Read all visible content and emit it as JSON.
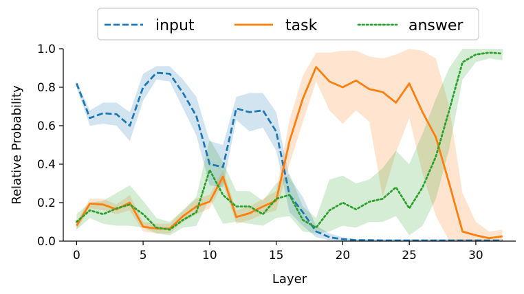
{
  "chart_data": {
    "type": "line",
    "xlabel": "Layer",
    "ylabel": "Relative Probability",
    "xlim": [
      -1,
      33
    ],
    "ylim": [
      0,
      1
    ],
    "xticks": [
      0,
      5,
      10,
      15,
      20,
      25,
      30
    ],
    "yticks": [
      0.0,
      0.2,
      0.4,
      0.6,
      0.8,
      1.0
    ],
    "ytick_labels": [
      "0.0",
      "0.2",
      "0.4",
      "0.6",
      "0.8",
      "1.0"
    ],
    "legend_position": "top-center",
    "x": [
      0,
      1,
      2,
      3,
      4,
      5,
      6,
      7,
      8,
      9,
      10,
      11,
      12,
      13,
      14,
      15,
      16,
      17,
      18,
      19,
      20,
      21,
      22,
      23,
      24,
      25,
      26,
      27,
      28,
      29,
      30,
      31,
      32
    ],
    "series": [
      {
        "name": "input",
        "color": "#1f77b4",
        "style": "dashed",
        "values": [
          0.82,
          0.64,
          0.665,
          0.66,
          0.6,
          0.8,
          0.875,
          0.87,
          0.77,
          0.65,
          0.4,
          0.385,
          0.69,
          0.67,
          0.68,
          0.57,
          0.24,
          0.15,
          0.05,
          0.02,
          0.01,
          0.005,
          0.005,
          0.003,
          0.003,
          0.003,
          0.003,
          0.003,
          0.003,
          0.003,
          0.003,
          0.003,
          0.003
        ],
        "upper": [
          0.83,
          0.68,
          0.72,
          0.72,
          0.67,
          0.87,
          0.91,
          0.91,
          0.84,
          0.75,
          0.52,
          0.5,
          0.75,
          0.77,
          0.77,
          0.67,
          0.33,
          0.23,
          0.08,
          0.04,
          0.02,
          0.01,
          0.01,
          0.01,
          0.01,
          0.01,
          0.01,
          0.01,
          0.01,
          0.01,
          0.01,
          0.01,
          0.01
        ],
        "lower": [
          0.8,
          0.6,
          0.61,
          0.6,
          0.52,
          0.73,
          0.84,
          0.83,
          0.69,
          0.55,
          0.29,
          0.28,
          0.63,
          0.57,
          0.59,
          0.47,
          0.15,
          0.08,
          0.02,
          0.005,
          0.0,
          0.0,
          0.0,
          0.0,
          0.0,
          0.0,
          0.0,
          0.0,
          0.0,
          0.0,
          0.0,
          0.0,
          0.0
        ]
      },
      {
        "name": "task",
        "color": "#ff7f0e",
        "style": "solid",
        "values": [
          0.08,
          0.195,
          0.19,
          0.165,
          0.2,
          0.075,
          0.065,
          0.065,
          0.13,
          0.18,
          0.205,
          0.335,
          0.125,
          0.145,
          0.18,
          0.21,
          0.52,
          0.74,
          0.905,
          0.83,
          0.8,
          0.835,
          0.79,
          0.775,
          0.72,
          0.82,
          0.67,
          0.54,
          0.3,
          0.05,
          0.03,
          0.015,
          0.025
        ],
        "upper": [
          0.1,
          0.22,
          0.22,
          0.19,
          0.24,
          0.1,
          0.09,
          0.09,
          0.16,
          0.22,
          0.24,
          0.37,
          0.16,
          0.18,
          0.22,
          0.26,
          0.63,
          0.86,
          0.98,
          0.98,
          0.99,
          0.99,
          0.96,
          0.95,
          0.97,
          1.0,
          0.99,
          0.95,
          0.7,
          0.25,
          0.1,
          0.05,
          0.06
        ],
        "lower": [
          0.06,
          0.17,
          0.16,
          0.14,
          0.16,
          0.05,
          0.04,
          0.04,
          0.1,
          0.14,
          0.17,
          0.3,
          0.09,
          0.11,
          0.14,
          0.16,
          0.4,
          0.62,
          0.83,
          0.68,
          0.61,
          0.68,
          0.62,
          0.23,
          0.46,
          0.64,
          0.35,
          0.13,
          0.0,
          0.0,
          0.0,
          0.0,
          0.0
        ]
      },
      {
        "name": "answer",
        "color": "#2ca02c",
        "style": "dotted",
        "values": [
          0.1,
          0.16,
          0.14,
          0.17,
          0.19,
          0.14,
          0.07,
          0.06,
          0.11,
          0.15,
          0.37,
          0.24,
          0.18,
          0.18,
          0.14,
          0.22,
          0.24,
          0.11,
          0.07,
          0.16,
          0.2,
          0.165,
          0.205,
          0.22,
          0.28,
          0.17,
          0.28,
          0.44,
          0.68,
          0.93,
          0.97,
          0.98,
          0.975
        ],
        "upper": [
          0.14,
          0.2,
          0.21,
          0.25,
          0.29,
          0.21,
          0.12,
          0.1,
          0.16,
          0.23,
          0.53,
          0.41,
          0.26,
          0.26,
          0.21,
          0.3,
          0.35,
          0.18,
          0.12,
          0.32,
          0.34,
          0.3,
          0.32,
          0.38,
          0.47,
          0.4,
          0.56,
          0.74,
          0.9,
          1.0,
          1.0,
          1.0,
          1.0
        ],
        "lower": [
          0.06,
          0.12,
          0.09,
          0.08,
          0.08,
          0.07,
          0.04,
          0.03,
          0.07,
          0.08,
          0.22,
          0.09,
          0.1,
          0.09,
          0.08,
          0.12,
          0.13,
          0.05,
          0.04,
          0.05,
          0.08,
          0.07,
          0.1,
          0.1,
          0.13,
          0.03,
          0.08,
          0.22,
          0.48,
          0.84,
          0.93,
          0.95,
          0.94
        ]
      }
    ]
  }
}
